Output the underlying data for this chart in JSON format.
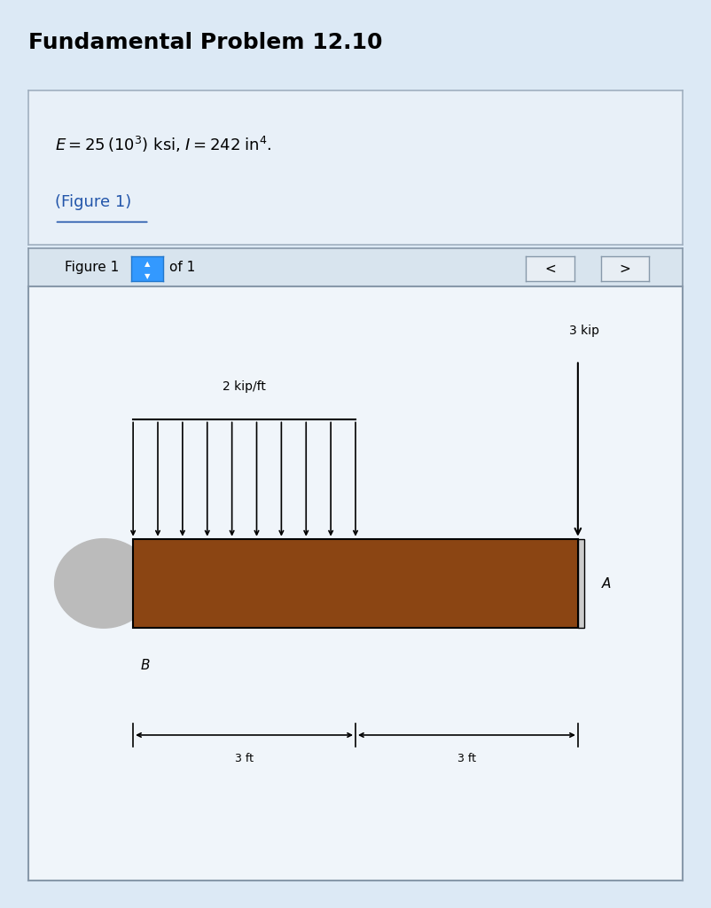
{
  "title": "Fundamental Problem 12.10",
  "title_fontsize": 18,
  "title_fontweight": "bold",
  "bg_color": "#dce9f5",
  "info_box_bg": "#e8f0f8",
  "info_box_border": "#a0b0c0",
  "formula_text": "$E = 25\\,(10^3)$ ksi, $I = 242\\;\\mathrm{in}^4$.",
  "link_text": "(Figure 1)",
  "link_color": "#2255aa",
  "figure_panel_bg": "#f0f5fa",
  "figure_panel_border": "#8899aa",
  "beam_color": "#8B4513",
  "dist_load_label": "2 kip/ft",
  "point_load_label": "3 kip",
  "label_A": "$A$",
  "label_B": "$B$",
  "dim1_label": "3 ft",
  "dim2_label": "3 ft",
  "wall_color": "#bbbbbb",
  "num_dist_arrows": 10
}
